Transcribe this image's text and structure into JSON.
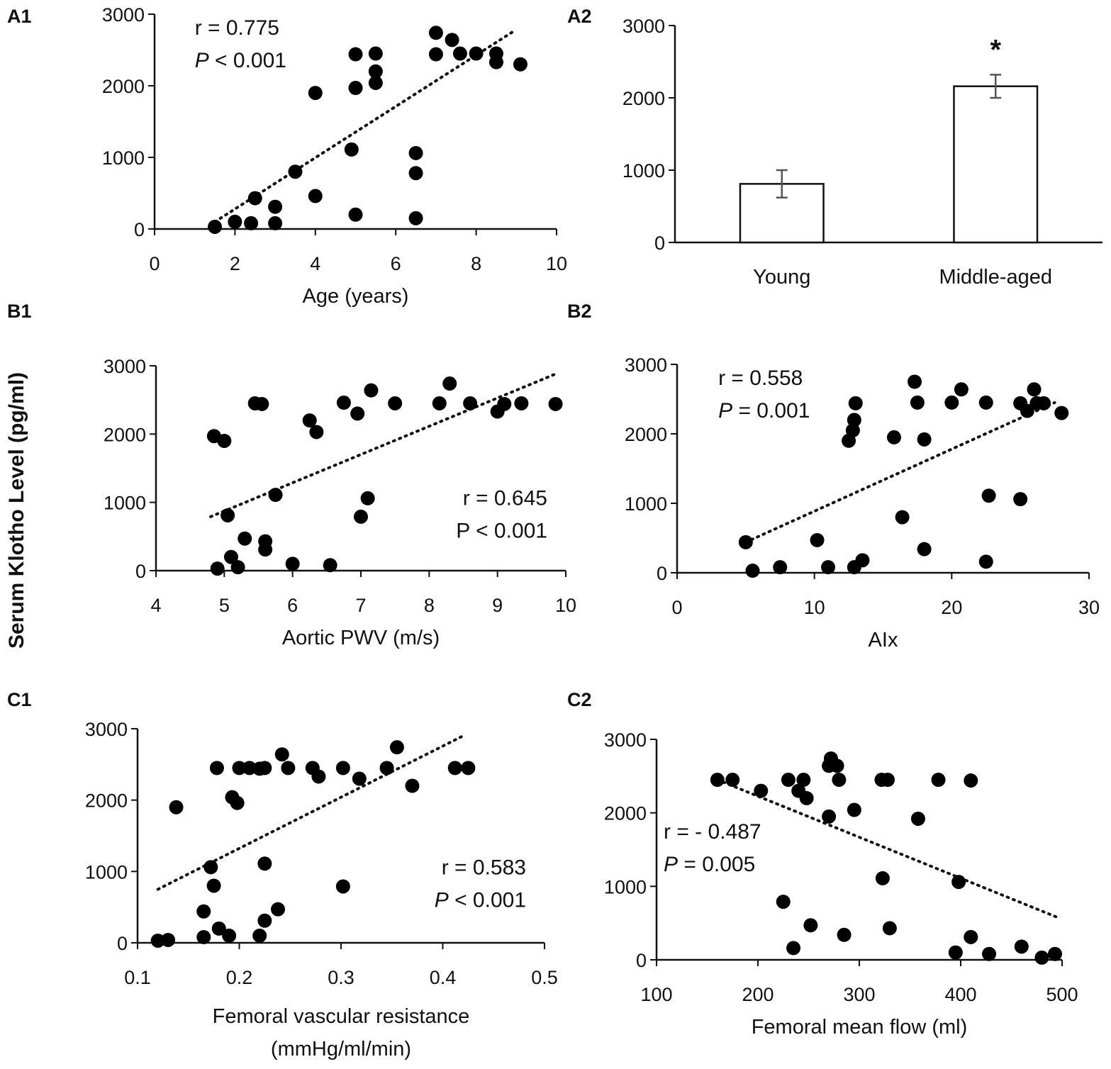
{
  "shared_ylabel": "Serum Klotho Level (pg/ml)",
  "chart_data": [
    {
      "id": "A1",
      "panel_label": "A1",
      "type": "scatter",
      "xlabel": "Age (years)",
      "xlabel2": "",
      "xlim": [
        0,
        10
      ],
      "ylim": [
        0,
        3000
      ],
      "xticks": [
        "0",
        "2",
        "4",
        "6",
        "8",
        "10"
      ],
      "yticks": [
        "0",
        "1000",
        "2000",
        "3000"
      ],
      "stat_lines": [
        [
          "r = 0.775"
        ],
        [
          {
            "t": "P",
            "i": true
          },
          " < 0.001"
        ]
      ],
      "stat_anchor": "upper-left",
      "trend": [
        [
          1.5,
          100
        ],
        [
          8.9,
          2750
        ]
      ],
      "points": [
        [
          1.5,
          30
        ],
        [
          2.0,
          100
        ],
        [
          2.4,
          80
        ],
        [
          2.5,
          430
        ],
        [
          3.0,
          310
        ],
        [
          3.0,
          80
        ],
        [
          3.5,
          800
        ],
        [
          4.0,
          1900
        ],
        [
          4.0,
          460
        ],
        [
          4.9,
          1110
        ],
        [
          5.0,
          2440
        ],
        [
          5.0,
          1970
        ],
        [
          5.0,
          200
        ],
        [
          5.5,
          2450
        ],
        [
          5.5,
          2200
        ],
        [
          5.5,
          2040
        ],
        [
          6.5,
          1060
        ],
        [
          6.5,
          780
        ],
        [
          6.5,
          150
        ],
        [
          7.0,
          2740
        ],
        [
          7.0,
          2440
        ],
        [
          7.4,
          2640
        ],
        [
          7.6,
          2450
        ],
        [
          8.0,
          2450
        ],
        [
          8.5,
          2450
        ],
        [
          8.5,
          2330
        ],
        [
          9.1,
          2300
        ]
      ]
    },
    {
      "id": "A2",
      "panel_label": "A2",
      "type": "bar",
      "xlabel": "",
      "ylim": [
        0,
        3000
      ],
      "yticks": [
        "0",
        "1000",
        "2000",
        "3000"
      ],
      "categories": [
        "Young",
        "Middle-aged"
      ],
      "values": [
        810,
        2160
      ],
      "errors": [
        190,
        160
      ],
      "annotations": [
        {
          "category": "Middle-aged",
          "text": "*"
        }
      ]
    },
    {
      "id": "B1",
      "panel_label": "B1",
      "type": "scatter",
      "xlabel": "Aortic PWV (m/s)",
      "xlabel2": "",
      "xlim": [
        4,
        10
      ],
      "ylim": [
        0,
        3000
      ],
      "xticks": [
        "4",
        "5",
        "6",
        "7",
        "8",
        "9",
        "10"
      ],
      "yticks": [
        "0",
        "1000",
        "2000",
        "3000"
      ],
      "stat_lines": [
        [
          "r = 0.645"
        ],
        [
          "P < 0.001"
        ]
      ],
      "stat_anchor": "lower-right",
      "trend": [
        [
          4.8,
          790
        ],
        [
          9.85,
          2880
        ]
      ],
      "points": [
        [
          4.85,
          1970
        ],
        [
          4.9,
          30
        ],
        [
          5.0,
          1900
        ],
        [
          5.05,
          810
        ],
        [
          5.1,
          200
        ],
        [
          5.2,
          50
        ],
        [
          5.3,
          470
        ],
        [
          5.45,
          2450
        ],
        [
          5.55,
          2440
        ],
        [
          5.6,
          430
        ],
        [
          5.6,
          310
        ],
        [
          5.75,
          1110
        ],
        [
          6.0,
          100
        ],
        [
          6.25,
          2200
        ],
        [
          6.35,
          2030
        ],
        [
          6.55,
          80
        ],
        [
          6.75,
          2460
        ],
        [
          6.95,
          2300
        ],
        [
          7.0,
          790
        ],
        [
          7.1,
          1060
        ],
        [
          7.15,
          2640
        ],
        [
          7.5,
          2450
        ],
        [
          8.15,
          2450
        ],
        [
          8.3,
          2740
        ],
        [
          8.6,
          2450
        ],
        [
          9.0,
          2330
        ],
        [
          9.1,
          2440
        ],
        [
          9.35,
          2450
        ],
        [
          9.85,
          2440
        ]
      ]
    },
    {
      "id": "B2",
      "panel_label": "B2",
      "type": "scatter",
      "xlabel": "AIx",
      "xlabel2": "",
      "xlim": [
        0,
        30
      ],
      "ylim": [
        0,
        3000
      ],
      "xticks": [
        "0",
        "10",
        "20",
        "30"
      ],
      "yticks": [
        "0",
        "1000",
        "2000",
        "3000"
      ],
      "stat_lines": [
        [
          "r = 0.558"
        ],
        [
          {
            "t": "P",
            "i": true
          },
          " = 0.001"
        ]
      ],
      "stat_anchor": "upper-left",
      "trend": [
        [
          5.0,
          440
        ],
        [
          27.5,
          2450
        ]
      ],
      "points": [
        [
          5.0,
          440
        ],
        [
          5.5,
          30
        ],
        [
          7.5,
          80
        ],
        [
          10.2,
          470
        ],
        [
          11.0,
          80
        ],
        [
          12.5,
          1900
        ],
        [
          12.8,
          2050
        ],
        [
          12.9,
          2200
        ],
        [
          13.0,
          2440
        ],
        [
          12.9,
          80
        ],
        [
          13.5,
          180
        ],
        [
          15.8,
          1950
        ],
        [
          16.4,
          800
        ],
        [
          17.3,
          2750
        ],
        [
          17.5,
          2450
        ],
        [
          18.0,
          1920
        ],
        [
          18.0,
          340
        ],
        [
          20.0,
          2450
        ],
        [
          20.7,
          2640
        ],
        [
          22.5,
          2450
        ],
        [
          22.5,
          160
        ],
        [
          22.7,
          1110
        ],
        [
          25.0,
          2440
        ],
        [
          25.0,
          1060
        ],
        [
          25.5,
          2330
        ],
        [
          26.0,
          2640
        ],
        [
          26.2,
          2440
        ],
        [
          26.7,
          2440
        ],
        [
          28.0,
          2300
        ]
      ]
    },
    {
      "id": "C1",
      "panel_label": "C1",
      "type": "scatter",
      "xlabel": "Femoral vascular resistance",
      "xlabel2": "(mmHg/ml/min)",
      "xlim": [
        0.1,
        0.5
      ],
      "ylim": [
        0,
        3000
      ],
      "xticks": [
        "0.1",
        "0.2",
        "0.3",
        "0.4",
        "0.5"
      ],
      "yticks": [
        "0",
        "1000",
        "2000",
        "3000"
      ],
      "stat_lines": [
        [
          "r = 0.583"
        ],
        [
          {
            "t": "P",
            "i": true
          },
          " < 0.001"
        ]
      ],
      "stat_anchor": "lower-right",
      "trend": [
        [
          0.12,
          750
        ],
        [
          0.42,
          2900
        ]
      ],
      "points": [
        [
          0.12,
          30
        ],
        [
          0.13,
          40
        ],
        [
          0.138,
          1900
        ],
        [
          0.165,
          440
        ],
        [
          0.165,
          80
        ],
        [
          0.172,
          1060
        ],
        [
          0.175,
          800
        ],
        [
          0.178,
          2450
        ],
        [
          0.18,
          200
        ],
        [
          0.19,
          100
        ],
        [
          0.193,
          2040
        ],
        [
          0.198,
          1960
        ],
        [
          0.2,
          2450
        ],
        [
          0.21,
          2450
        ],
        [
          0.22,
          2440
        ],
        [
          0.22,
          100
        ],
        [
          0.225,
          2450
        ],
        [
          0.225,
          310
        ],
        [
          0.225,
          1110
        ],
        [
          0.238,
          470
        ],
        [
          0.242,
          2640
        ],
        [
          0.248,
          2450
        ],
        [
          0.272,
          2450
        ],
        [
          0.278,
          2330
        ],
        [
          0.302,
          2450
        ],
        [
          0.302,
          790
        ],
        [
          0.318,
          2300
        ],
        [
          0.345,
          2450
        ],
        [
          0.355,
          2740
        ],
        [
          0.37,
          2200
        ],
        [
          0.412,
          2450
        ],
        [
          0.425,
          2450
        ]
      ]
    },
    {
      "id": "C2",
      "panel_label": "C2",
      "type": "scatter",
      "xlabel": "Femoral mean flow (ml)",
      "xlabel2": "",
      "xlim": [
        100,
        500
      ],
      "ylim": [
        0,
        3000
      ],
      "xticks": [
        "100",
        "200",
        "300",
        "400",
        "500"
      ],
      "yticks": [
        "0",
        "1000",
        "2000",
        "3000"
      ],
      "stat_lines": [
        [
          "r = - 0.487"
        ],
        [
          {
            "t": "P",
            "i": true
          },
          " = 0.005"
        ]
      ],
      "stat_anchor": "middle-left",
      "trend": [
        [
          160,
          2450
        ],
        [
          495,
          580
        ]
      ],
      "points": [
        [
          160,
          2450
        ],
        [
          175,
          2450
        ],
        [
          203,
          2300
        ],
        [
          225,
          790
        ],
        [
          230,
          2450
        ],
        [
          235,
          160
        ],
        [
          240,
          2300
        ],
        [
          245,
          2450
        ],
        [
          248,
          2200
        ],
        [
          252,
          470
        ],
        [
          270,
          2640
        ],
        [
          270,
          1950
        ],
        [
          272,
          2740
        ],
        [
          278,
          2640
        ],
        [
          280,
          2450
        ],
        [
          285,
          340
        ],
        [
          295,
          2040
        ],
        [
          322,
          2450
        ],
        [
          323,
          1110
        ],
        [
          328,
          2450
        ],
        [
          330,
          430
        ],
        [
          358,
          1920
        ],
        [
          378,
          2450
        ],
        [
          395,
          100
        ],
        [
          398,
          1060
        ],
        [
          410,
          2440
        ],
        [
          410,
          310
        ],
        [
          428,
          80
        ],
        [
          460,
          180
        ],
        [
          480,
          30
        ],
        [
          493,
          80
        ]
      ]
    }
  ]
}
